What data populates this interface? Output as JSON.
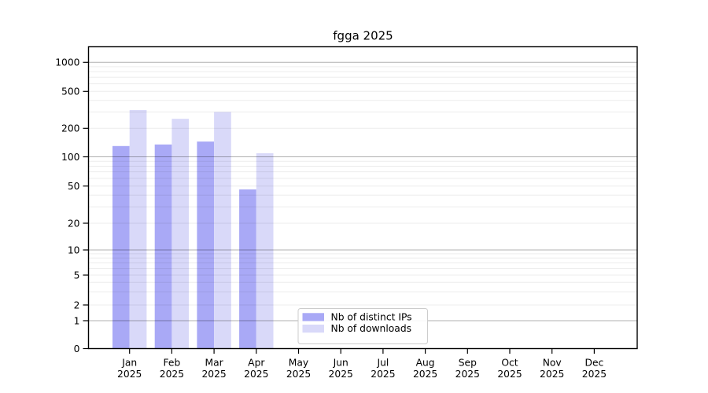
{
  "chart_data": {
    "type": "bar",
    "title": "fgga 2025",
    "categories": [
      "Jan",
      "Feb",
      "Mar",
      "Apr",
      "May",
      "Jun",
      "Jul",
      "Aug",
      "Sep",
      "Oct",
      "Nov",
      "Dec"
    ],
    "x_axis": {
      "label_line2": "2025"
    },
    "series": [
      {
        "name": "Nb of distinct IPs",
        "color": "#a9a9f6",
        "values": [
          130,
          135,
          145,
          46,
          null,
          null,
          null,
          null,
          null,
          null,
          null,
          null
        ]
      },
      {
        "name": "Nb of downloads",
        "color": "#d9d9f9",
        "values": [
          315,
          253,
          300,
          109,
          null,
          null,
          null,
          null,
          null,
          null,
          null,
          null
        ]
      }
    ],
    "y_axis": {
      "scale": "symlog",
      "tick_values": [
        0,
        1,
        2,
        5,
        10,
        20,
        50,
        100,
        200,
        500,
        1000
      ],
      "tick_labels": [
        "0",
        "1",
        "2",
        "5",
        "10",
        "20",
        "50",
        "100",
        "200",
        "500",
        "1000"
      ],
      "range": [
        0,
        1500
      ]
    },
    "grid": "on",
    "legend": {
      "position": "lower-center"
    },
    "colors": {
      "frame": "#000000",
      "grid_major": "rgba(0,0,0,0.31)",
      "grid_minor": "rgba(0,0,0,0.075)",
      "legend_border": "#cccccc",
      "legend_fill": "#ffffff",
      "text": "#000000"
    }
  }
}
